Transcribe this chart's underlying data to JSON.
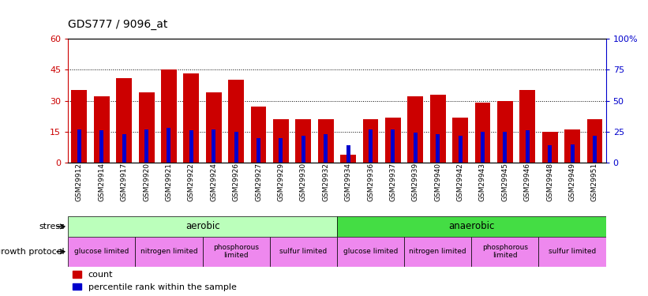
{
  "title": "GDS777 / 9096_at",
  "samples": [
    "GSM29912",
    "GSM29914",
    "GSM29917",
    "GSM29920",
    "GSM29921",
    "GSM29922",
    "GSM29924",
    "GSM29926",
    "GSM29927",
    "GSM29929",
    "GSM29930",
    "GSM29932",
    "GSM29934",
    "GSM29936",
    "GSM29937",
    "GSM29939",
    "GSM29940",
    "GSM29942",
    "GSM29943",
    "GSM29945",
    "GSM29946",
    "GSM29948",
    "GSM29949",
    "GSM29951"
  ],
  "count_values": [
    35,
    32,
    41,
    34,
    45,
    43,
    34,
    40,
    27,
    21,
    21,
    21,
    4,
    21,
    22,
    32,
    33,
    22,
    29,
    30,
    35,
    15,
    16,
    21
  ],
  "percentile_values": [
    27,
    26,
    23,
    27,
    28,
    26,
    27,
    25,
    20,
    20,
    22,
    23,
    14,
    27,
    27,
    24,
    23,
    22,
    25,
    25,
    26,
    14,
    15,
    22
  ],
  "count_color": "#cc0000",
  "percentile_color": "#0000cc",
  "ylim_left": [
    0,
    60
  ],
  "ylim_right": [
    0,
    100
  ],
  "yticks_left": [
    0,
    15,
    30,
    45,
    60
  ],
  "yticks_right": [
    0,
    25,
    50,
    75,
    100
  ],
  "ytick_labels_right": [
    "0",
    "25",
    "50",
    "75",
    "100%"
  ],
  "stress_aerobic_color": "#bbffbb",
  "stress_anaerobic_color": "#44dd44",
  "growth_protocol_color": "#ee88ee",
  "background_color": "#ffffff",
  "axis_label_color_left": "#cc0000",
  "axis_label_color_right": "#0000cc",
  "label_stress": "stress",
  "label_growth": "growth protocol",
  "legend_count": "count",
  "legend_percentile": "percentile rank within the sample",
  "aerobic_count": 12,
  "anaerobic_count": 12,
  "growth_segments": [
    {
      "label": "glucose limited",
      "n": 3
    },
    {
      "label": "nitrogen limited",
      "n": 3
    },
    {
      "label": "phosphorous\nlimited",
      "n": 3
    },
    {
      "label": "sulfur limited",
      "n": 3
    },
    {
      "label": "glucose limited",
      "n": 3
    },
    {
      "label": "nitrogen limited",
      "n": 3
    },
    {
      "label": "phosphorous\nlimited",
      "n": 3
    },
    {
      "label": "sulfur limited",
      "n": 3
    }
  ]
}
